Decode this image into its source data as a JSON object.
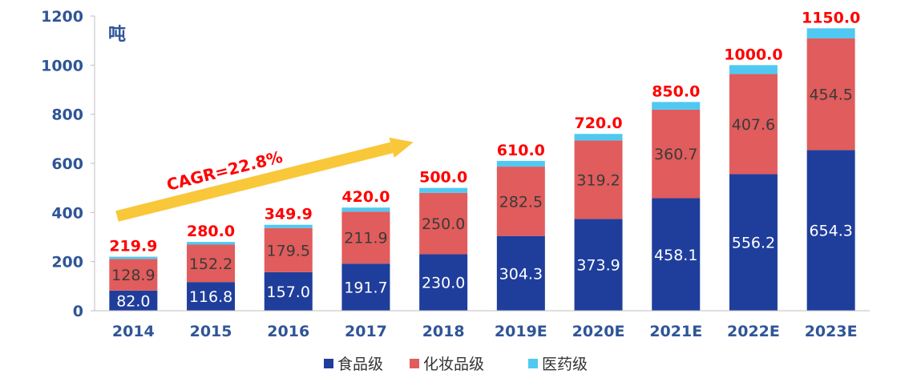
{
  "chart_data": {
    "type": "bar",
    "stacked": true,
    "unit_label": "吨",
    "categories": [
      "2014",
      "2015",
      "2016",
      "2017",
      "2018",
      "2019E",
      "2020E",
      "2021E",
      "2022E",
      "2023E"
    ],
    "series": [
      {
        "name": "食品级",
        "color": "#1f3e9c",
        "values": [
          82.0,
          116.8,
          157.0,
          191.7,
          230.0,
          304.3,
          373.9,
          458.1,
          556.2,
          654.3
        ]
      },
      {
        "name": "化妆品级",
        "color": "#e15c5c",
        "values": [
          128.9,
          152.2,
          179.5,
          211.9,
          250.0,
          282.5,
          319.2,
          360.7,
          407.6,
          454.5
        ]
      },
      {
        "name": "医药级",
        "color": "#4fc9f2",
        "values": [
          9.0,
          11.0,
          13.4,
          16.4,
          20.0,
          23.2,
          26.9,
          31.2,
          36.2,
          41.2
        ]
      }
    ],
    "totals": [
      219.9,
      280.0,
      349.9,
      420.0,
      500.0,
      610.0,
      720.0,
      850.0,
      1000.0,
      1150.0
    ],
    "total_labels": [
      "219.9",
      "280.0",
      "349.9",
      "420.0",
      "500.0",
      "610.0",
      "720.0",
      "850.0",
      "1000.0",
      "1150.0"
    ],
    "food_labels": [
      "82.0",
      "116.8",
      "157.0",
      "191.7",
      "230.0",
      "304.3",
      "373.9",
      "458.1",
      "556.2",
      "654.3"
    ],
    "cosmetic_labels": [
      "128.9",
      "152.2",
      "179.5",
      "211.9",
      "250.0",
      "282.5",
      "319.2",
      "360.7",
      "407.6",
      "454.5"
    ],
    "ylim": [
      0,
      1200
    ],
    "yticks": [
      "0",
      "200",
      "400",
      "600",
      "800",
      "1000",
      "1200"
    ],
    "annotation": {
      "text": "CAGR=22.8%",
      "arrow_color": "#f9c73a"
    },
    "legend_position": "bottom",
    "grid": false
  }
}
